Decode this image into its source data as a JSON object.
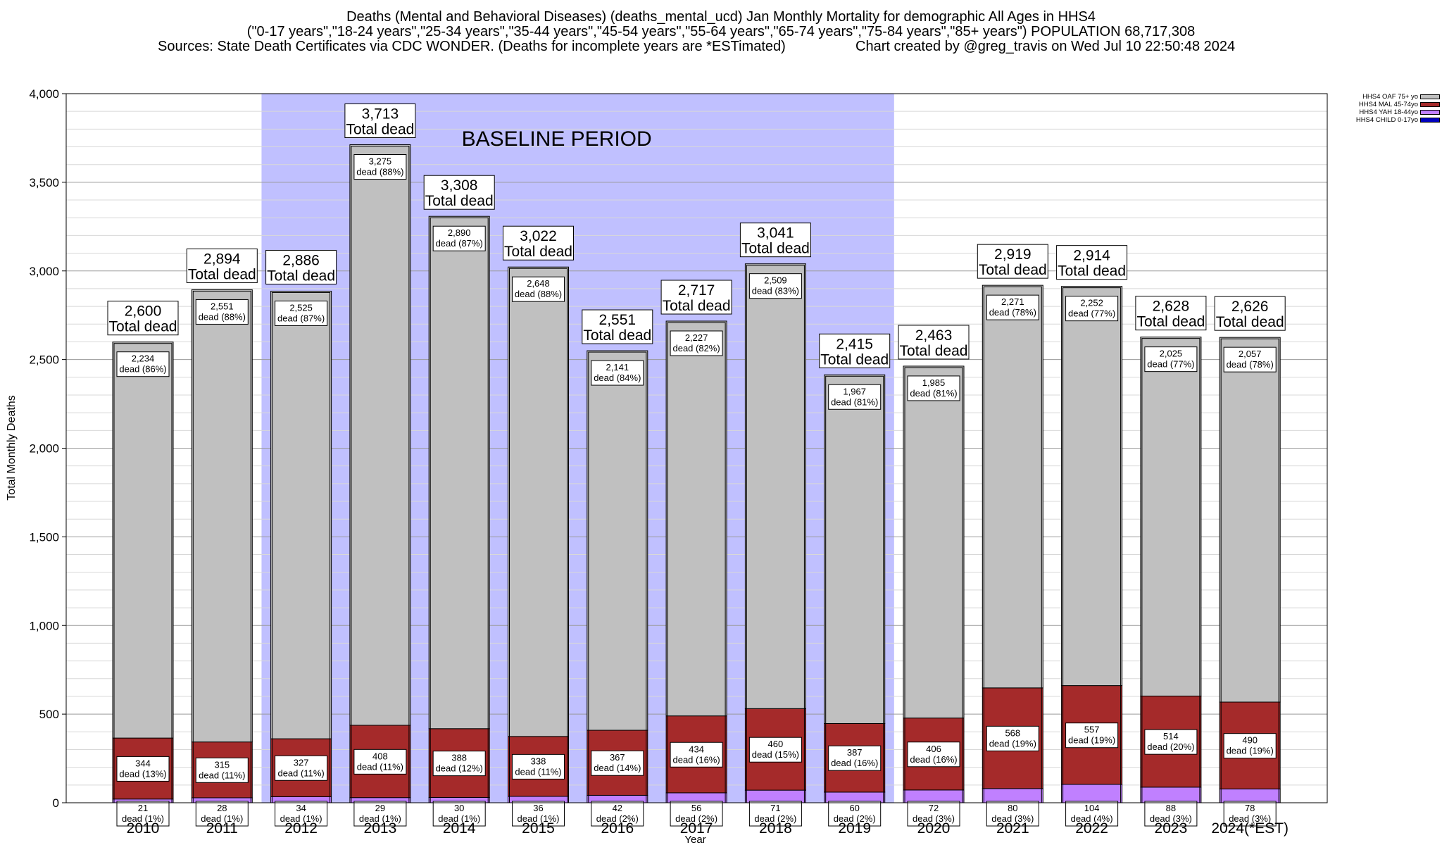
{
  "header": {
    "line1": "Deaths (Mental and Behavioral Diseases) (deaths_mental_ucd) Jan Monthly Mortality for demographic All Ages in HHS4",
    "line2": "(\"0-17 years\",\"18-24 years\",\"25-34 years\",\"35-44 years\",\"45-54 years\",\"55-64 years\",\"65-74 years\",\"75-84 years\",\"85+ years\") POPULATION 68,717,308",
    "sources": "Sources: State Death Certificates via CDC WONDER. (Deaths for incomplete years are *ESTimated)",
    "credit": "Chart created by @greg_travis on Wed Jul 10 22:50:48 2024"
  },
  "legend": [
    {
      "label": "HHS4 OAF 75+ yo",
      "color": "#c0c0c0"
    },
    {
      "label": "HHS4 MAL 45-74yo",
      "color": "#a52a2a"
    },
    {
      "label": "HHS4 YAH 18-44yo",
      "color": "#c080ff"
    },
    {
      "label": "HHS4 CHILD 0-17yo",
      "color": "#0000c0"
    }
  ],
  "chart_data": {
    "type": "bar",
    "stacked": true,
    "xlabel": "Year",
    "ylabel": "Total Monthly Deaths",
    "ylim": [
      0,
      4000
    ],
    "yticks": [
      0,
      500,
      1000,
      1500,
      2000,
      2500,
      3000,
      3500,
      4000
    ],
    "ytick_labels": [
      "0",
      "500",
      "1,000",
      "1,500",
      "2,000",
      "2,500",
      "3,000",
      "3,500",
      "4,000"
    ],
    "grid": true,
    "legend_position": "top-right",
    "baseline": {
      "label": "BASELINE PERIOD",
      "from": "2012",
      "to": "2019",
      "color": "#c0c0ff"
    },
    "total_suffix": "Total dead",
    "dead_prefix": "dead",
    "categories": [
      "2010",
      "2011",
      "2012",
      "2013",
      "2014",
      "2015",
      "2016",
      "2017",
      "2018",
      "2019",
      "2020",
      "2021",
      "2022",
      "2023",
      "2024(*EST)"
    ],
    "totals": [
      "2,600",
      "2,894",
      "2,886",
      "3,713",
      "3,308",
      "3,022",
      "2,551",
      "2,717",
      "3,041",
      "2,415",
      "2,463",
      "2,919",
      "2,914",
      "2,628",
      "2,626"
    ],
    "series": [
      {
        "name": "HHS4 CHILD 0-17yo",
        "color": "#0000c0",
        "values": [
          0,
          0,
          0,
          0,
          0,
          0,
          0,
          0,
          0,
          0,
          0,
          0,
          0,
          0,
          0
        ],
        "labels": []
      },
      {
        "name": "HHS4 YAH 18-44yo",
        "color": "#c080ff",
        "values": [
          21,
          28,
          34,
          29,
          30,
          36,
          42,
          56,
          71,
          60,
          72,
          80,
          104,
          88,
          78
        ],
        "labels": [
          "21",
          "28",
          "34",
          "29",
          "30",
          "36",
          "42",
          "56",
          "71",
          "60",
          "72",
          "80",
          "104",
          "88",
          "78"
        ],
        "pcts": [
          "(1%)",
          "(1%)",
          "(1%)",
          "(1%)",
          "(1%)",
          "(1%)",
          "(2%)",
          "(2%)",
          "(2%)",
          "(2%)",
          "(3%)",
          "(3%)",
          "(4%)",
          "(3%)",
          "(3%)"
        ]
      },
      {
        "name": "HHS4 MAL 45-74yo",
        "color": "#a52a2a",
        "values": [
          344,
          315,
          327,
          408,
          388,
          338,
          367,
          434,
          460,
          387,
          406,
          568,
          557,
          514,
          490
        ],
        "labels": [
          "344",
          "315",
          "327",
          "408",
          "388",
          "338",
          "367",
          "434",
          "460",
          "387",
          "406",
          "568",
          "557",
          "514",
          "490"
        ],
        "pcts": [
          "(13%)",
          "(11%)",
          "(11%)",
          "(11%)",
          "(12%)",
          "(11%)",
          "(14%)",
          "(16%)",
          "(15%)",
          "(16%)",
          "(16%)",
          "(19%)",
          "(19%)",
          "(20%)",
          "(19%)"
        ]
      },
      {
        "name": "HHS4 OAF 75+ yo",
        "color": "#c0c0c0",
        "values": [
          2234,
          2551,
          2525,
          3275,
          2890,
          2648,
          2141,
          2227,
          2509,
          1967,
          1985,
          2271,
          2252,
          2025,
          2057
        ],
        "labels": [
          "2,234",
          "2,551",
          "2,525",
          "3,275",
          "2,890",
          "2,648",
          "2,141",
          "2,227",
          "2,509",
          "1,967",
          "1,985",
          "2,271",
          "2,252",
          "2,025",
          "2,057"
        ],
        "pcts": [
          "(86%)",
          "(88%)",
          "(87%)",
          "(88%)",
          "(87%)",
          "(88%)",
          "(84%)",
          "(82%)",
          "(83%)",
          "(81%)",
          "(81%)",
          "(78%)",
          "(77%)",
          "(77%)",
          "(78%)"
        ]
      }
    ]
  }
}
